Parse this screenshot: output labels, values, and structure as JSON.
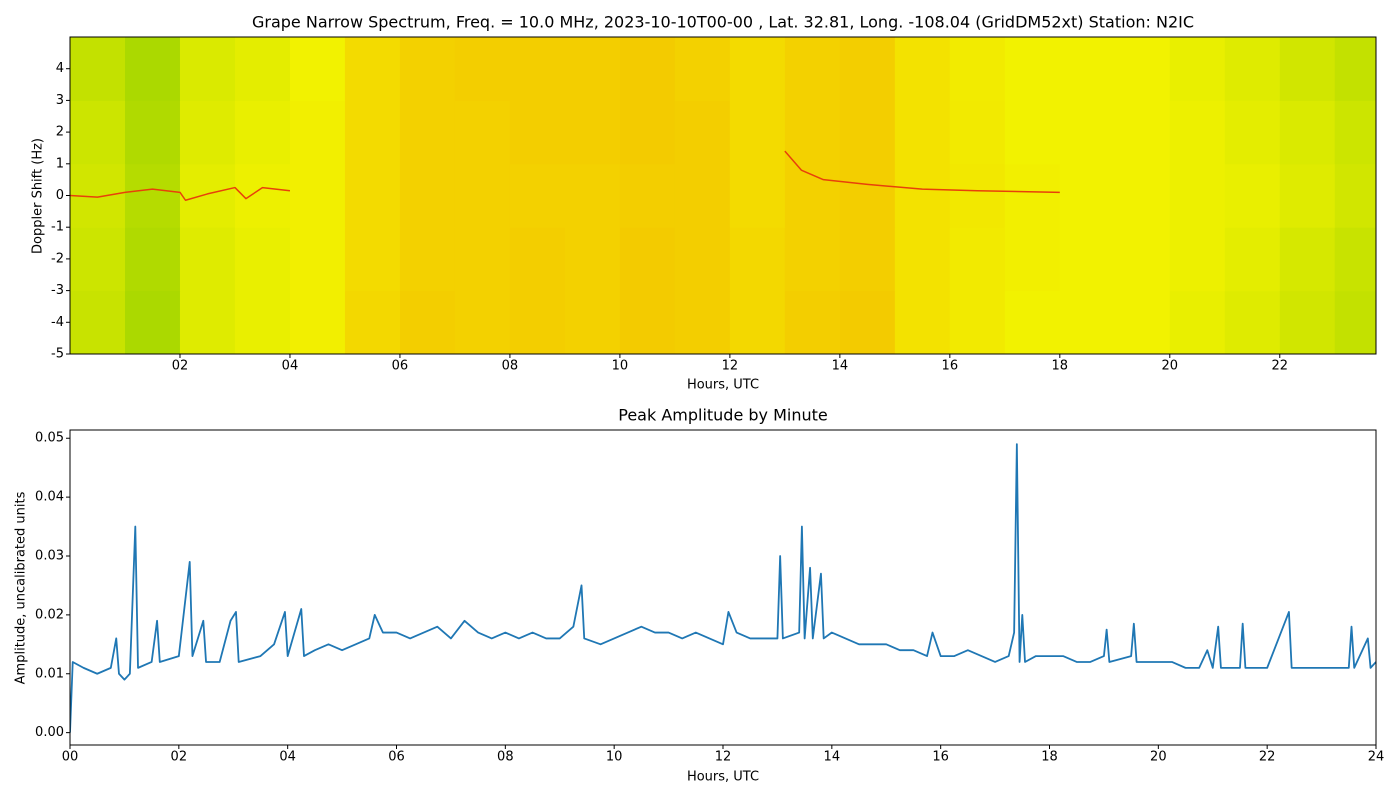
{
  "chart_data": [
    {
      "type": "heatmap",
      "title": "Grape Narrow Spectrum, Freq. = 10.0 MHz, 2023-10-10T00-00 , Lat.  32.81, Long. -108.04 (GridDM52xt) Station: N2IC",
      "xlabel": "Hours, UTC",
      "ylabel": "Doppler Shift (Hz)",
      "xlim": [
        0,
        23.75
      ],
      "ylim": [
        -5,
        5
      ],
      "xticks": [
        {
          "value": 2,
          "label": "02"
        },
        {
          "value": 4,
          "label": "04"
        },
        {
          "value": 6,
          "label": "06"
        },
        {
          "value": 8,
          "label": "08"
        },
        {
          "value": 10,
          "label": "10"
        },
        {
          "value": 12,
          "label": "12"
        },
        {
          "value": 14,
          "label": "14"
        },
        {
          "value": 16,
          "label": "16"
        },
        {
          "value": 18,
          "label": "18"
        },
        {
          "value": 20,
          "label": "20"
        },
        {
          "value": 22,
          "label": "22"
        }
      ],
      "yticks": [
        -5,
        -4,
        -3,
        -2,
        -1,
        0,
        1,
        2,
        3,
        4
      ],
      "colormap": [
        "#7cc800",
        "#f2f200",
        "#f5a000"
      ],
      "x": [
        0,
        1,
        2,
        3,
        4,
        5,
        6,
        7,
        8,
        9,
        10,
        11,
        12,
        13,
        14,
        15,
        16,
        17,
        18,
        19,
        20,
        21,
        22,
        23
      ],
      "y": [
        -5,
        -3,
        -1,
        1,
        3
      ],
      "z": [
        [
          0.32,
          0.2,
          0.42,
          0.46,
          0.52,
          0.66,
          0.72,
          0.7,
          0.72,
          0.7,
          0.74,
          0.72,
          0.66,
          0.72,
          0.74,
          0.6,
          0.55,
          0.5,
          0.5,
          0.5,
          0.46,
          0.42,
          0.36,
          0.3
        ],
        [
          0.34,
          0.22,
          0.42,
          0.46,
          0.52,
          0.64,
          0.7,
          0.7,
          0.72,
          0.7,
          0.74,
          0.72,
          0.66,
          0.7,
          0.72,
          0.6,
          0.55,
          0.52,
          0.5,
          0.5,
          0.48,
          0.44,
          0.38,
          0.32
        ],
        [
          0.36,
          0.24,
          0.44,
          0.48,
          0.52,
          0.64,
          0.7,
          0.7,
          0.7,
          0.7,
          0.72,
          0.72,
          0.64,
          0.7,
          0.72,
          0.6,
          0.56,
          0.52,
          0.5,
          0.5,
          0.48,
          0.46,
          0.42,
          0.36
        ],
        [
          0.34,
          0.22,
          0.42,
          0.46,
          0.52,
          0.64,
          0.7,
          0.7,
          0.72,
          0.72,
          0.74,
          0.72,
          0.64,
          0.7,
          0.72,
          0.6,
          0.55,
          0.5,
          0.5,
          0.5,
          0.48,
          0.44,
          0.4,
          0.34
        ],
        [
          0.3,
          0.2,
          0.4,
          0.44,
          0.5,
          0.64,
          0.7,
          0.72,
          0.72,
          0.72,
          0.74,
          0.7,
          0.64,
          0.7,
          0.72,
          0.6,
          0.54,
          0.5,
          0.5,
          0.5,
          0.46,
          0.42,
          0.36,
          0.3
        ]
      ],
      "trace": {
        "color": "#e8400a",
        "x": [
          0,
          0.5,
          1.0,
          1.5,
          2.0,
          2.1,
          2.5,
          3.0,
          3.2,
          3.5,
          4.0,
          4.1,
          13.0,
          13.3,
          13.7,
          14.5,
          15.5,
          16.5,
          18.0
        ],
        "values": [
          0,
          -0.05,
          0.1,
          0.2,
          0.1,
          -0.15,
          0.05,
          0.25,
          -0.1,
          0.25,
          0.15,
          null,
          1.4,
          0.8,
          0.5,
          0.35,
          0.2,
          0.15,
          0.1
        ]
      }
    },
    {
      "type": "line",
      "title": "Peak Amplitude by Minute",
      "xlabel": "Hours, UTC",
      "ylabel": "Amplitude, uncalibrated units",
      "xlim": [
        0,
        24
      ],
      "ylim": [
        -0.0021,
        0.0514
      ],
      "xticks": [
        {
          "value": 0,
          "label": "00"
        },
        {
          "value": 2,
          "label": "02"
        },
        {
          "value": 4,
          "label": "04"
        },
        {
          "value": 6,
          "label": "06"
        },
        {
          "value": 8,
          "label": "08"
        },
        {
          "value": 10,
          "label": "10"
        },
        {
          "value": 12,
          "label": "12"
        },
        {
          "value": 14,
          "label": "14"
        },
        {
          "value": 16,
          "label": "16"
        },
        {
          "value": 18,
          "label": "18"
        },
        {
          "value": 20,
          "label": "20"
        },
        {
          "value": 22,
          "label": "22"
        },
        {
          "value": 24,
          "label": "24"
        }
      ],
      "yticks": [
        {
          "value": 0,
          "label": "0.00"
        },
        {
          "value": 0.01,
          "label": "0.01"
        },
        {
          "value": 0.02,
          "label": "0.02"
        },
        {
          "value": 0.03,
          "label": "0.03"
        },
        {
          "value": 0.04,
          "label": "0.04"
        },
        {
          "value": 0.05,
          "label": "0.05"
        }
      ],
      "series": [
        {
          "color": "#1f77b4",
          "x": [
            0,
            0.05,
            0.25,
            0.5,
            0.75,
            0.85,
            0.9,
            1.0,
            1.1,
            1.2,
            1.25,
            1.5,
            1.6,
            1.65,
            2.0,
            2.2,
            2.25,
            2.45,
            2.5,
            2.75,
            2.95,
            3.05,
            3.1,
            3.5,
            3.75,
            3.95,
            4.0,
            4.25,
            4.3,
            4.5,
            4.75,
            5.0,
            5.25,
            5.5,
            5.6,
            5.75,
            6.0,
            6.25,
            6.5,
            6.75,
            7.0,
            7.25,
            7.5,
            7.75,
            8.0,
            8.25,
            8.5,
            8.75,
            9.0,
            9.25,
            9.4,
            9.45,
            9.75,
            10.0,
            10.25,
            10.5,
            10.75,
            11.0,
            11.25,
            11.5,
            11.75,
            12.0,
            12.1,
            12.25,
            12.5,
            12.75,
            13.0,
            13.05,
            13.1,
            13.4,
            13.45,
            13.5,
            13.6,
            13.65,
            13.8,
            13.85,
            14.0,
            14.25,
            14.5,
            14.75,
            15.0,
            15.25,
            15.5,
            15.75,
            15.85,
            16.0,
            16.25,
            16.5,
            16.75,
            17.0,
            17.25,
            17.35,
            17.4,
            17.45,
            17.5,
            17.55,
            17.75,
            18.0,
            18.25,
            18.5,
            18.75,
            19.0,
            19.05,
            19.1,
            19.5,
            19.55,
            19.6,
            20.0,
            20.25,
            20.5,
            20.75,
            20.9,
            21.0,
            21.1,
            21.15,
            21.5,
            21.55,
            21.6,
            21.75,
            22.0,
            22.4,
            22.45,
            22.75,
            23.0,
            23.5,
            23.55,
            23.6,
            23.85,
            23.9,
            24.0
          ],
          "values": [
            0.0,
            0.012,
            0.011,
            0.01,
            0.011,
            0.016,
            0.01,
            0.009,
            0.01,
            0.035,
            0.011,
            0.012,
            0.019,
            0.012,
            0.013,
            0.029,
            0.013,
            0.019,
            0.012,
            0.012,
            0.019,
            0.0205,
            0.012,
            0.013,
            0.015,
            0.0205,
            0.013,
            0.021,
            0.013,
            0.014,
            0.015,
            0.014,
            0.015,
            0.016,
            0.02,
            0.017,
            0.017,
            0.016,
            0.017,
            0.018,
            0.016,
            0.019,
            0.017,
            0.016,
            0.017,
            0.016,
            0.017,
            0.016,
            0.016,
            0.018,
            0.025,
            0.016,
            0.015,
            0.016,
            0.017,
            0.018,
            0.017,
            0.017,
            0.016,
            0.017,
            0.016,
            0.015,
            0.0205,
            0.017,
            0.016,
            0.016,
            0.016,
            0.03,
            0.016,
            0.017,
            0.035,
            0.016,
            0.028,
            0.016,
            0.027,
            0.016,
            0.017,
            0.016,
            0.015,
            0.015,
            0.015,
            0.014,
            0.014,
            0.013,
            0.017,
            0.013,
            0.013,
            0.014,
            0.013,
            0.012,
            0.013,
            0.017,
            0.049,
            0.012,
            0.02,
            0.012,
            0.013,
            0.013,
            0.013,
            0.012,
            0.012,
            0.013,
            0.0175,
            0.012,
            0.013,
            0.0185,
            0.012,
            0.012,
            0.012,
            0.011,
            0.011,
            0.014,
            0.011,
            0.018,
            0.011,
            0.011,
            0.0185,
            0.011,
            0.011,
            0.011,
            0.0205,
            0.011,
            0.011,
            0.011,
            0.011,
            0.018,
            0.011,
            0.016,
            0.011,
            0.012
          ]
        }
      ]
    }
  ]
}
